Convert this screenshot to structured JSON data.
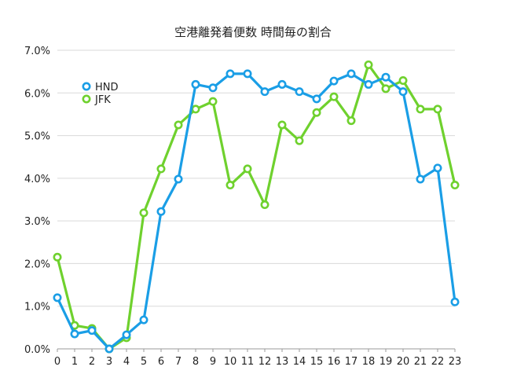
{
  "chart_data": {
    "type": "line",
    "title": "空港離発着便数 時間毎の割合",
    "xlabel": "",
    "ylabel": "",
    "x": [
      "0",
      "1",
      "2",
      "3",
      "4",
      "5",
      "6",
      "7",
      "8",
      "9",
      "10",
      "11",
      "12",
      "13",
      "14",
      "15",
      "16",
      "17",
      "18",
      "19",
      "20",
      "21",
      "22",
      "23"
    ],
    "yticks": [
      "0.0%",
      "1.0%",
      "2.0%",
      "3.0%",
      "4.0%",
      "5.0%",
      "6.0%",
      "7.0%"
    ],
    "ylim": [
      0,
      7
    ],
    "grid": "horizontal",
    "legend_position": "upper-left",
    "series": [
      {
        "name": "HND",
        "color": "#1a9ee6",
        "values": [
          1.2,
          0.35,
          0.43,
          0.0,
          0.33,
          0.68,
          3.22,
          3.98,
          6.2,
          6.12,
          6.45,
          6.45,
          6.03,
          6.2,
          6.03,
          5.86,
          6.28,
          6.45,
          6.2,
          6.37,
          6.03,
          3.98,
          4.24,
          1.1
        ]
      },
      {
        "name": "JFK",
        "color": "#6fd12e",
        "values": [
          2.15,
          0.55,
          0.48,
          0.0,
          0.26,
          3.19,
          4.22,
          5.25,
          5.62,
          5.8,
          3.84,
          4.22,
          3.38,
          5.25,
          4.88,
          5.54,
          5.91,
          5.35,
          6.66,
          6.1,
          6.29,
          5.62,
          5.62,
          3.84
        ]
      }
    ]
  }
}
